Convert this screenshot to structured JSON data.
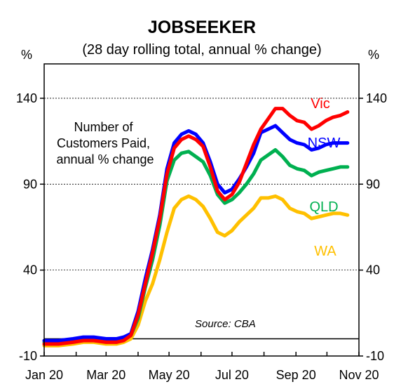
{
  "chart_data": {
    "type": "line",
    "title": "JOBSEEKER",
    "subtitle": "(28 day rolling total, annual % change)",
    "ylabel_left": "%",
    "ylabel_right": "%",
    "ylim": [
      -10,
      160
    ],
    "yticks": [
      -10,
      40,
      90,
      140
    ],
    "xlim": [
      "2020-01-01",
      "2020-11-01"
    ],
    "xticks": [
      "Jan 20",
      "Mar 20",
      "May 20",
      "Jul 20",
      "Sep 20",
      "Nov 20"
    ],
    "grid": "horizontal dashed",
    "annotation": "Number of\nCustomers Paid,\nannual % change",
    "source": "Source: CBA",
    "series": [
      {
        "name": "Vic",
        "color": "#ff0000",
        "points": [
          [
            "2020-01-01",
            -3
          ],
          [
            "2020-01-15",
            -3
          ],
          [
            "2020-01-29",
            -2
          ],
          [
            "2020-02-08",
            -1
          ],
          [
            "2020-02-18",
            -1
          ],
          [
            "2020-03-01",
            -2
          ],
          [
            "2020-03-11",
            -2
          ],
          [
            "2020-03-18",
            -1
          ],
          [
            "2020-03-25",
            2
          ],
          [
            "2020-04-01",
            14
          ],
          [
            "2020-04-08",
            32
          ],
          [
            "2020-04-15",
            50
          ],
          [
            "2020-04-22",
            70
          ],
          [
            "2020-04-29",
            96
          ],
          [
            "2020-05-06",
            111
          ],
          [
            "2020-05-13",
            116
          ],
          [
            "2020-05-20",
            118
          ],
          [
            "2020-05-27",
            116
          ],
          [
            "2020-06-03",
            112
          ],
          [
            "2020-06-10",
            100
          ],
          [
            "2020-06-17",
            86
          ],
          [
            "2020-06-24",
            81
          ],
          [
            "2020-07-01",
            84
          ],
          [
            "2020-07-08",
            91
          ],
          [
            "2020-07-15",
            102
          ],
          [
            "2020-07-22",
            113
          ],
          [
            "2020-07-29",
            122
          ],
          [
            "2020-08-05",
            128
          ],
          [
            "2020-08-12",
            134
          ],
          [
            "2020-08-19",
            134
          ],
          [
            "2020-08-26",
            130
          ],
          [
            "2020-09-02",
            127
          ],
          [
            "2020-09-09",
            126
          ],
          [
            "2020-09-16",
            122
          ],
          [
            "2020-09-23",
            124
          ],
          [
            "2020-09-30",
            127
          ],
          [
            "2020-10-07",
            129
          ],
          [
            "2020-10-14",
            130
          ],
          [
            "2020-10-21",
            132
          ]
        ]
      },
      {
        "name": "NSW",
        "color": "#0000ff",
        "points": [
          [
            "2020-01-01",
            -1
          ],
          [
            "2020-01-15",
            -1
          ],
          [
            "2020-01-29",
            0
          ],
          [
            "2020-02-08",
            1
          ],
          [
            "2020-02-18",
            1
          ],
          [
            "2020-03-01",
            0
          ],
          [
            "2020-03-11",
            0
          ],
          [
            "2020-03-18",
            1
          ],
          [
            "2020-03-25",
            3
          ],
          [
            "2020-04-01",
            16
          ],
          [
            "2020-04-08",
            35
          ],
          [
            "2020-04-15",
            52
          ],
          [
            "2020-04-22",
            72
          ],
          [
            "2020-04-29",
            99
          ],
          [
            "2020-05-06",
            114
          ],
          [
            "2020-05-13",
            119
          ],
          [
            "2020-05-20",
            121
          ],
          [
            "2020-05-27",
            119
          ],
          [
            "2020-06-03",
            114
          ],
          [
            "2020-06-10",
            103
          ],
          [
            "2020-06-17",
            90
          ],
          [
            "2020-06-24",
            85
          ],
          [
            "2020-07-01",
            87
          ],
          [
            "2020-07-08",
            93
          ],
          [
            "2020-07-15",
            100
          ],
          [
            "2020-07-22",
            108
          ],
          [
            "2020-07-29",
            120
          ],
          [
            "2020-08-05",
            122
          ],
          [
            "2020-08-12",
            124
          ],
          [
            "2020-08-19",
            120
          ],
          [
            "2020-08-26",
            116
          ],
          [
            "2020-09-02",
            114
          ],
          [
            "2020-09-09",
            113
          ],
          [
            "2020-09-16",
            110
          ],
          [
            "2020-09-23",
            111
          ],
          [
            "2020-09-30",
            113
          ],
          [
            "2020-10-07",
            114
          ],
          [
            "2020-10-14",
            114
          ],
          [
            "2020-10-21",
            114
          ]
        ]
      },
      {
        "name": "QLD",
        "color": "#00b050",
        "points": [
          [
            "2020-01-01",
            -2
          ],
          [
            "2020-01-15",
            -2
          ],
          [
            "2020-01-29",
            -1
          ],
          [
            "2020-02-08",
            0
          ],
          [
            "2020-02-18",
            0
          ],
          [
            "2020-03-01",
            -1
          ],
          [
            "2020-03-11",
            -1
          ],
          [
            "2020-03-18",
            0
          ],
          [
            "2020-03-25",
            2
          ],
          [
            "2020-04-01",
            12
          ],
          [
            "2020-04-08",
            30
          ],
          [
            "2020-04-15",
            46
          ],
          [
            "2020-04-22",
            66
          ],
          [
            "2020-04-29",
            92
          ],
          [
            "2020-05-06",
            104
          ],
          [
            "2020-05-13",
            108
          ],
          [
            "2020-05-20",
            109
          ],
          [
            "2020-05-27",
            106
          ],
          [
            "2020-06-03",
            103
          ],
          [
            "2020-06-10",
            95
          ],
          [
            "2020-06-17",
            84
          ],
          [
            "2020-06-24",
            79
          ],
          [
            "2020-07-01",
            81
          ],
          [
            "2020-07-08",
            85
          ],
          [
            "2020-07-15",
            90
          ],
          [
            "2020-07-22",
            96
          ],
          [
            "2020-07-29",
            104
          ],
          [
            "2020-08-05",
            107
          ],
          [
            "2020-08-12",
            110
          ],
          [
            "2020-08-19",
            106
          ],
          [
            "2020-08-26",
            101
          ],
          [
            "2020-09-02",
            99
          ],
          [
            "2020-09-09",
            98
          ],
          [
            "2020-09-16",
            95
          ],
          [
            "2020-09-23",
            97
          ],
          [
            "2020-09-30",
            98
          ],
          [
            "2020-10-07",
            99
          ],
          [
            "2020-10-14",
            100
          ],
          [
            "2020-10-21",
            100
          ]
        ]
      },
      {
        "name": "WA",
        "color": "#ffc000",
        "points": [
          [
            "2020-01-01",
            -4
          ],
          [
            "2020-01-15",
            -4
          ],
          [
            "2020-01-29",
            -3
          ],
          [
            "2020-02-08",
            -2
          ],
          [
            "2020-02-18",
            -2
          ],
          [
            "2020-03-01",
            -3
          ],
          [
            "2020-03-11",
            -3
          ],
          [
            "2020-03-18",
            -2
          ],
          [
            "2020-03-25",
            0
          ],
          [
            "2020-04-01",
            8
          ],
          [
            "2020-04-08",
            22
          ],
          [
            "2020-04-15",
            32
          ],
          [
            "2020-04-22",
            46
          ],
          [
            "2020-04-29",
            62
          ],
          [
            "2020-05-06",
            76
          ],
          [
            "2020-05-13",
            81
          ],
          [
            "2020-05-20",
            83
          ],
          [
            "2020-05-27",
            81
          ],
          [
            "2020-06-03",
            77
          ],
          [
            "2020-06-10",
            70
          ],
          [
            "2020-06-17",
            62
          ],
          [
            "2020-06-24",
            60
          ],
          [
            "2020-07-01",
            63
          ],
          [
            "2020-07-08",
            68
          ],
          [
            "2020-07-15",
            72
          ],
          [
            "2020-07-22",
            76
          ],
          [
            "2020-07-29",
            82
          ],
          [
            "2020-08-05",
            82
          ],
          [
            "2020-08-12",
            83
          ],
          [
            "2020-08-19",
            81
          ],
          [
            "2020-08-26",
            76
          ],
          [
            "2020-09-02",
            74
          ],
          [
            "2020-09-09",
            73
          ],
          [
            "2020-09-16",
            70
          ],
          [
            "2020-09-23",
            71
          ],
          [
            "2020-09-30",
            72
          ],
          [
            "2020-10-07",
            73
          ],
          [
            "2020-10-14",
            73
          ],
          [
            "2020-10-21",
            72
          ]
        ]
      }
    ]
  }
}
